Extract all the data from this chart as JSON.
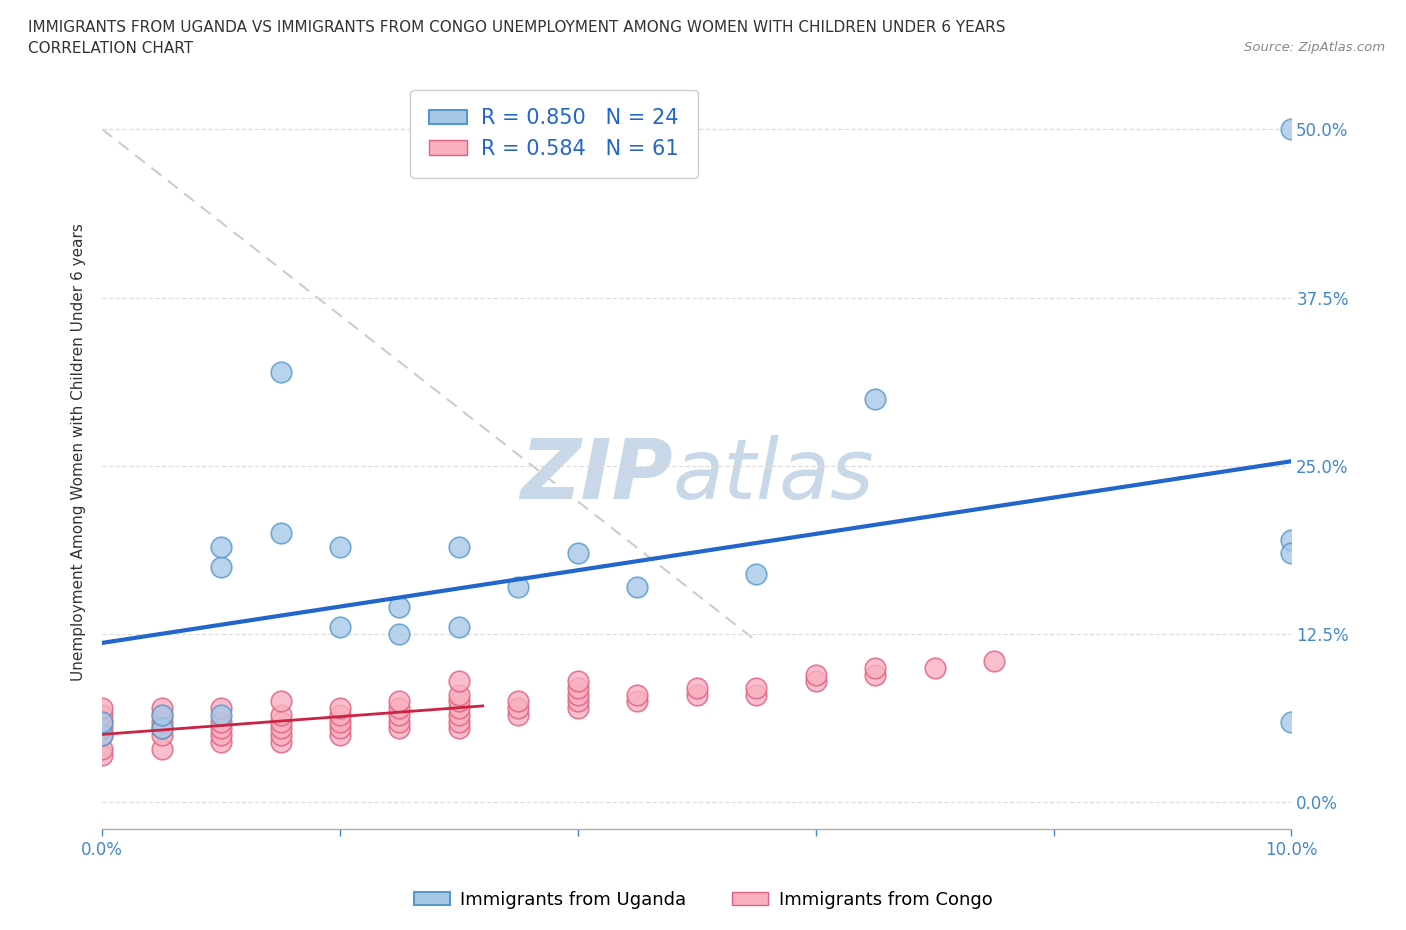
{
  "title_line1": "IMMIGRANTS FROM UGANDA VS IMMIGRANTS FROM CONGO UNEMPLOYMENT AMONG WOMEN WITH CHILDREN UNDER 6 YEARS",
  "title_line2": "CORRELATION CHART",
  "source": "Source: ZipAtlas.com",
  "ylabel": "Unemployment Among Women with Children Under 6 years",
  "xlim": [
    0.0,
    0.1
  ],
  "ylim": [
    -0.02,
    0.54
  ],
  "r_uganda": 0.85,
  "n_uganda": 24,
  "r_congo": 0.584,
  "n_congo": 61,
  "color_uganda_fill": "#a8c8e8",
  "color_uganda_edge": "#5599cc",
  "color_congo_fill": "#f8b0c0",
  "color_congo_edge": "#e06080",
  "color_uganda_line": "#2266cc",
  "color_congo_line": "#cc2244",
  "color_diag": "#cccccc",
  "watermark_color": "#c8d8e8",
  "uganda_x": [
    0.0,
    0.0,
    0.005,
    0.005,
    0.01,
    0.01,
    0.01,
    0.015,
    0.015,
    0.02,
    0.02,
    0.025,
    0.025,
    0.03,
    0.03,
    0.035,
    0.04,
    0.045,
    0.055,
    0.065,
    0.1,
    0.1,
    0.1,
    0.1
  ],
  "uganda_y": [
    0.05,
    0.06,
    0.055,
    0.065,
    0.065,
    0.175,
    0.19,
    0.2,
    0.32,
    0.13,
    0.19,
    0.125,
    0.145,
    0.13,
    0.19,
    0.16,
    0.185,
    0.16,
    0.17,
    0.3,
    0.5,
    0.195,
    0.185,
    0.06
  ],
  "congo_x": [
    0.0,
    0.0,
    0.0,
    0.0,
    0.0,
    0.0,
    0.0,
    0.005,
    0.005,
    0.005,
    0.005,
    0.005,
    0.005,
    0.01,
    0.01,
    0.01,
    0.01,
    0.01,
    0.015,
    0.015,
    0.015,
    0.015,
    0.015,
    0.015,
    0.02,
    0.02,
    0.02,
    0.02,
    0.02,
    0.025,
    0.025,
    0.025,
    0.025,
    0.025,
    0.03,
    0.03,
    0.03,
    0.03,
    0.03,
    0.03,
    0.03,
    0.035,
    0.035,
    0.035,
    0.04,
    0.04,
    0.04,
    0.04,
    0.04,
    0.045,
    0.045,
    0.05,
    0.05,
    0.055,
    0.055,
    0.06,
    0.06,
    0.065,
    0.065,
    0.07,
    0.075
  ],
  "congo_y": [
    0.035,
    0.04,
    0.05,
    0.055,
    0.06,
    0.065,
    0.07,
    0.04,
    0.05,
    0.055,
    0.06,
    0.065,
    0.07,
    0.045,
    0.05,
    0.055,
    0.06,
    0.07,
    0.045,
    0.05,
    0.055,
    0.06,
    0.065,
    0.075,
    0.05,
    0.055,
    0.06,
    0.065,
    0.07,
    0.055,
    0.06,
    0.065,
    0.07,
    0.075,
    0.055,
    0.06,
    0.065,
    0.07,
    0.075,
    0.08,
    0.09,
    0.065,
    0.07,
    0.075,
    0.07,
    0.075,
    0.08,
    0.085,
    0.09,
    0.075,
    0.08,
    0.08,
    0.085,
    0.08,
    0.085,
    0.09,
    0.095,
    0.095,
    0.1,
    0.1,
    0.105
  ],
  "x_tick_positions": [
    0.0,
    0.02,
    0.04,
    0.06,
    0.08,
    0.1
  ],
  "y_tick_positions": [
    0.0,
    0.125,
    0.25,
    0.375,
    0.5
  ]
}
